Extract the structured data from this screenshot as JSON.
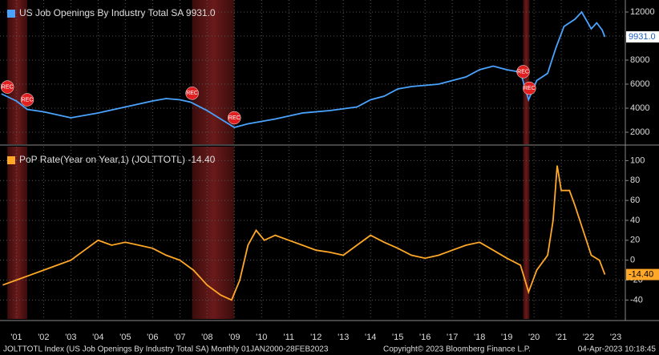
{
  "chart_data": [
    {
      "type": "line",
      "x": [
        2000.95,
        2001.5,
        2001.9,
        2002.5,
        2003.5,
        2004.5,
        2005.5,
        2006.5,
        2007.0,
        2007.5,
        2007.9,
        2008.5,
        2009.0,
        2009.5,
        2010.0,
        2011.0,
        2012.0,
        2013.0,
        2014.0,
        2014.5,
        2015.0,
        2015.5,
        2016.0,
        2017.0,
        2018.0,
        2018.5,
        2019.0,
        2019.5,
        2020.0,
        2020.3,
        2020.6,
        2021.0,
        2021.3,
        2021.6,
        2022.0,
        2022.25,
        2022.6,
        2022.8,
        2023.0,
        2023.1
      ],
      "series": [
        {
          "name": "US Job Openings By Industry Total SA 9931.0",
          "color": "#4aa3ff",
          "values": [
            5200,
            4600,
            3900,
            3700,
            3200,
            3600,
            4100,
            4600,
            4800,
            4700,
            4500,
            3800,
            3100,
            2400,
            2700,
            3100,
            3600,
            3800,
            4100,
            4700,
            5000,
            5600,
            5800,
            6000,
            6600,
            7200,
            7500,
            7200,
            7000,
            4700,
            6300,
            6900,
            9000,
            10800,
            11400,
            12000,
            10600,
            11100,
            10500,
            9931
          ],
          "last_label": "9931.0"
        }
      ],
      "xlim": [
        2000.9,
        2023.85
      ],
      "ylim": [
        1000,
        13000
      ],
      "yticks": [
        2000,
        4000,
        6000,
        8000,
        10000,
        12000
      ],
      "grid": true
    },
    {
      "type": "line",
      "x": [
        2001.0,
        2001.5,
        2002.0,
        2002.5,
        2003.0,
        2003.5,
        2004.0,
        2004.5,
        2005.0,
        2005.5,
        2006.0,
        2006.5,
        2007.0,
        2007.5,
        2008.0,
        2008.5,
        2009.0,
        2009.4,
        2009.7,
        2010.0,
        2010.3,
        2010.6,
        2011.0,
        2011.5,
        2012.0,
        2012.5,
        2013.0,
        2013.5,
        2014.0,
        2014.5,
        2015.0,
        2015.5,
        2016.0,
        2016.5,
        2017.0,
        2017.5,
        2018.0,
        2018.5,
        2019.0,
        2019.5,
        2020.0,
        2020.3,
        2020.6,
        2021.0,
        2021.2,
        2021.35,
        2021.5,
        2021.8,
        2022.0,
        2022.3,
        2022.6,
        2022.9,
        2023.1
      ],
      "series": [
        {
          "name": "PoP Rate(Year on Year,1) (JOLTTOTL) -14.40",
          "color": "#ffa726",
          "values": [
            -25,
            -20,
            -15,
            -10,
            -5,
            0,
            10,
            20,
            15,
            18,
            15,
            12,
            5,
            0,
            -10,
            -25,
            -35,
            -40,
            -20,
            15,
            30,
            20,
            25,
            20,
            15,
            10,
            8,
            5,
            15,
            25,
            18,
            12,
            5,
            2,
            5,
            10,
            15,
            18,
            10,
            2,
            -5,
            -32,
            -10,
            5,
            40,
            95,
            70,
            70,
            55,
            30,
            5,
            0,
            -14.4
          ],
          "last_label": "-14.40"
        }
      ],
      "xlim": [
        2000.9,
        2023.85
      ],
      "ylim": [
        -59,
        114
      ],
      "yticks": [
        -40,
        -20,
        0,
        20,
        40,
        60,
        80,
        100
      ],
      "grid": true,
      "xticks": [
        {
          "value": 2001.5,
          "label": "'01"
        },
        {
          "value": 2002.5,
          "label": "'02"
        },
        {
          "value": 2003.5,
          "label": "'03"
        },
        {
          "value": 2004.5,
          "label": "'04"
        },
        {
          "value": 2005.5,
          "label": "'05"
        },
        {
          "value": 2006.5,
          "label": "'06"
        },
        {
          "value": 2007.5,
          "label": "'07"
        },
        {
          "value": 2008.5,
          "label": "'08"
        },
        {
          "value": 2009.5,
          "label": "'09"
        },
        {
          "value": 2010.5,
          "label": "'10"
        },
        {
          "value": 2011.5,
          "label": "'11"
        },
        {
          "value": 2012.5,
          "label": "'12"
        },
        {
          "value": 2013.5,
          "label": "'13"
        },
        {
          "value": 2014.5,
          "label": "'14"
        },
        {
          "value": 2015.5,
          "label": "'15"
        },
        {
          "value": 2016.5,
          "label": "'16"
        },
        {
          "value": 2017.5,
          "label": "'17"
        },
        {
          "value": 2018.5,
          "label": "'18"
        },
        {
          "value": 2019.5,
          "label": "'19"
        },
        {
          "value": 2020.5,
          "label": "'20"
        },
        {
          "value": 2021.5,
          "label": "'21"
        },
        {
          "value": 2022.5,
          "label": "'22"
        },
        {
          "value": 2023.5,
          "label": "'23"
        }
      ]
    }
  ],
  "recessions": [
    [
      2001.17,
      2001.9
    ],
    [
      2007.95,
      2009.5
    ],
    [
      2020.1,
      2020.33
    ]
  ],
  "rec_label": "REC",
  "footer": {
    "left": "JOLTTOTL Index (US Job Openings By Industry Total SA)  Monthly 01JAN2000-28FEB2023",
    "copyright": "Copyright© 2023 Bloomberg Finance L.P.",
    "timestamp": "04-Apr-2023 10:18:45"
  }
}
